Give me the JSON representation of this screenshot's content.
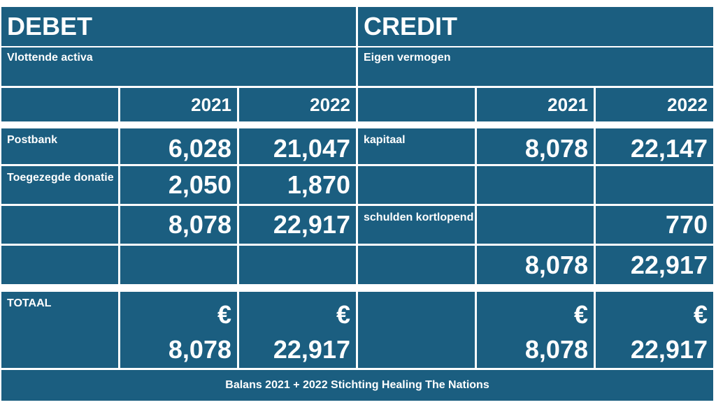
{
  "debet": {
    "title": "DEBET",
    "section": "Vlottende activa",
    "years": [
      "2021",
      "2022"
    ],
    "rows": [
      {
        "label": "Postbank",
        "v2021": "6,028",
        "v2022": "21,047"
      },
      {
        "label": "Toegezegde donatie",
        "v2021": "2,050",
        "v2022": "1,870"
      },
      {
        "label": "",
        "v2021": "8,078",
        "v2022": "22,917"
      }
    ]
  },
  "credit": {
    "title": "CREDIT",
    "section": "Eigen vermogen",
    "years": [
      "2021",
      "2022"
    ],
    "rows": [
      {
        "label": "kapitaal",
        "v2021": "8,078",
        "v2022": "22,147"
      },
      {
        "label": "",
        "v2021": "",
        "v2022": ""
      },
      {
        "label": "schulden kortlopend",
        "v2021": "",
        "v2022": "770"
      },
      {
        "label": "",
        "v2021": "8,078",
        "v2022": "22,917"
      }
    ]
  },
  "totaal": {
    "label": "TOTAAL",
    "currency": "€",
    "debet_2021": "8,078",
    "debet_2022": "22,917",
    "credit_2021": "8,078",
    "credit_2022": "22,917"
  },
  "footer": "Balans 2021 +  2022  Stichting  Healing The Nations",
  "colors": {
    "cell": "#1b5e80",
    "text": "#ffffff",
    "grid": "#ffffff"
  }
}
